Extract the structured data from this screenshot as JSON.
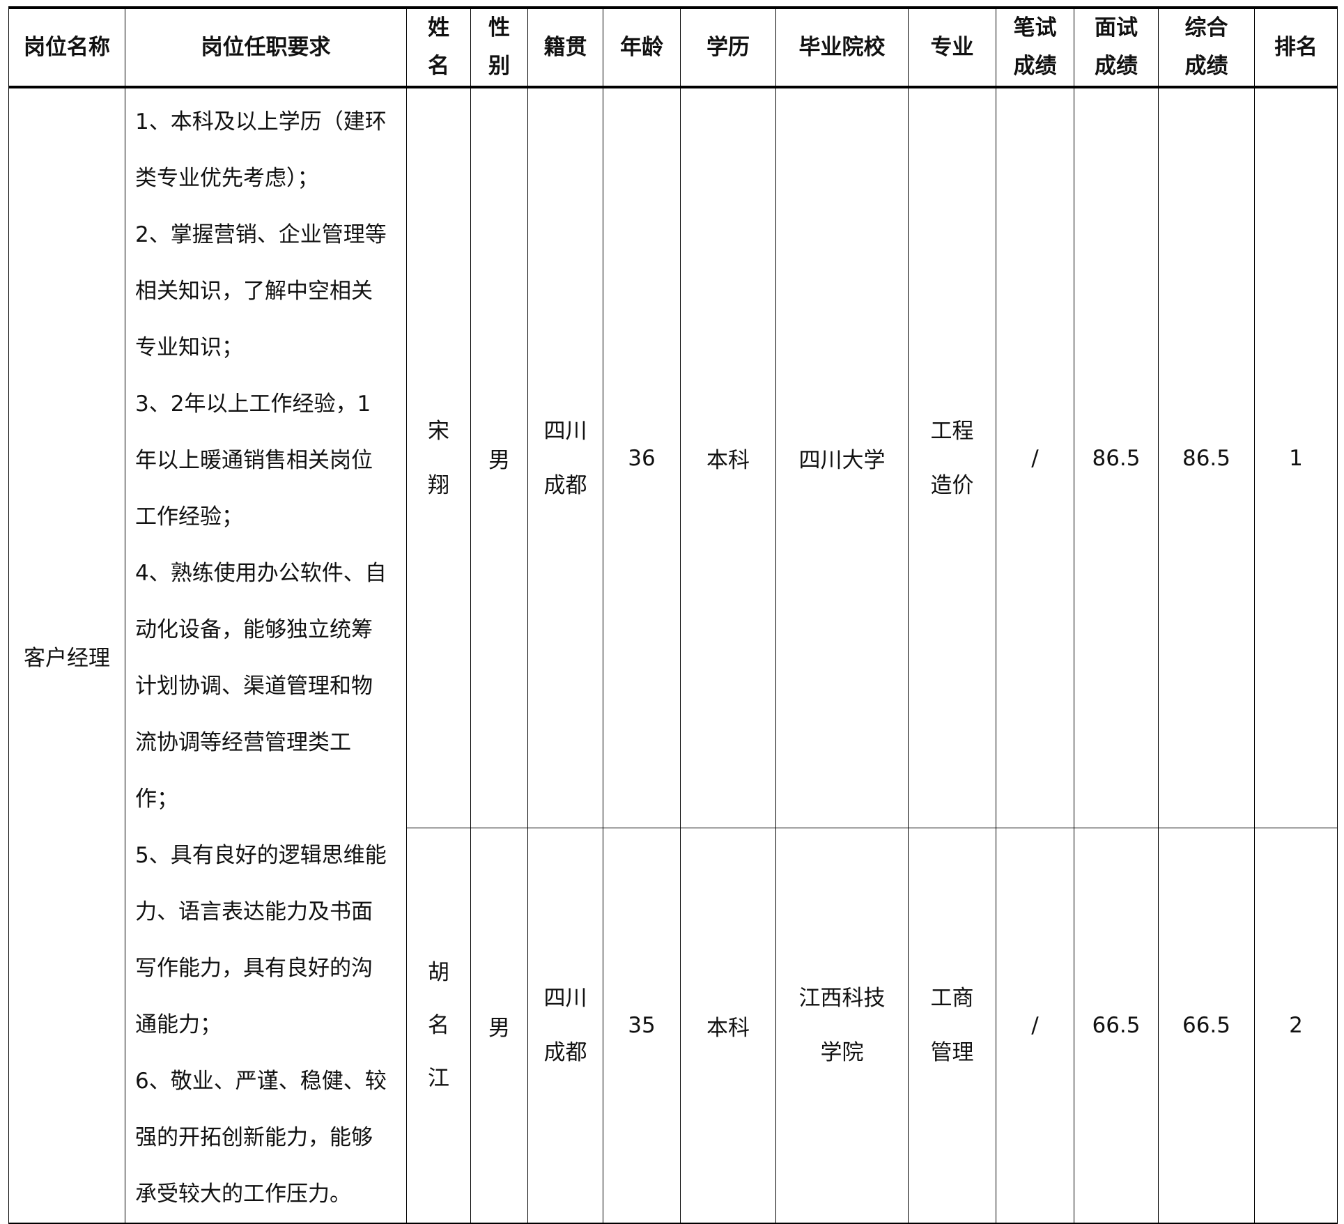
{
  "headers": [
    "岗位名称",
    "岗位任职要求",
    "姓\n名",
    "性\n别",
    "籍贯",
    "年龄",
    "学历",
    "毕业院校",
    "专业",
    "笔试\n成绩",
    "面试\n成绩",
    "综合\n成绩",
    "排名"
  ],
  "header_lines": {
    "name": [
      "姓",
      "名"
    ],
    "gender": [
      "性",
      "别"
    ],
    "written": [
      "笔试",
      "成绩"
    ],
    "interview": [
      "面试",
      "成绩"
    ],
    "total": [
      "综合",
      "成绩"
    ]
  },
  "position": "客户经理",
  "requirements": [
    "1、本科及以上学历（建环",
    "类专业优先考虑）；",
    "2、掌握营销、企业管理等",
    "相关知识，了解中空相关",
    "专业知识；",
    "3、2年以上工作经验，1",
    "年以上暖通销售相关岗位",
    "工作经验；",
    "4、熟练使用办公软件、自",
    "动化设备，能够独立统筹",
    "计划协调、渠道管理和物",
    "流协调等经营管理类工",
    "作；",
    "5、具有良好的逻辑思维能",
    "力、语言表达能力及书面",
    "写作能力，具有良好的沟",
    "通能力；",
    "6、敬业、严谨、稳健、较",
    "强的开拓创新能力，能够",
    "承受较大的工作压力。"
  ],
  "rows": [
    {
      "name": [
        "宋",
        "翔"
      ],
      "gender": "男",
      "origin": [
        "四川",
        "成都"
      ],
      "age": "36",
      "education": "本科",
      "school": [
        "四川大学"
      ],
      "major": [
        "工程",
        "造价"
      ],
      "written": "/",
      "interview": "86.5",
      "total": "86.5",
      "rank": "1"
    },
    {
      "name": [
        "胡",
        "名",
        "江"
      ],
      "gender": "男",
      "origin": [
        "四川",
        "成都"
      ],
      "age": "35",
      "education": "本科",
      "school": [
        "江西科技",
        "学院"
      ],
      "major": [
        "工商",
        "管理"
      ],
      "written": "/",
      "interview": "66.5",
      "total": "66.5",
      "rank": "2"
    }
  ]
}
